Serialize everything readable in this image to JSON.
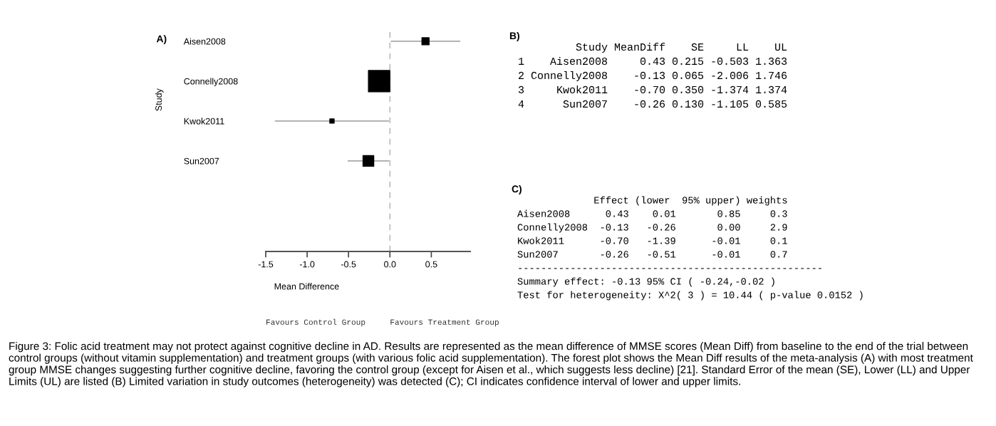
{
  "chart_data": [
    {
      "type": "bubble",
      "orientation": "horizontal",
      "title": "A)",
      "xlabel": "Mean Difference",
      "ylabel": "Study",
      "categories": [
        "Aisen2008",
        "Connelly2008",
        "Kwok2011",
        "Sun2007"
      ],
      "values": [
        0.43,
        -0.13,
        -0.7,
        -0.26
      ],
      "sizes": [
        0.11,
        1,
        0.04,
        0.25
      ],
      "errors": [
        [
          0.01,
          0.85
        ],
        [
          -0.26,
          0.0
        ],
        [
          -1.39,
          -0.01
        ],
        [
          -0.51,
          -0.01
        ]
      ],
      "colors": [
        "#000000",
        "#000000",
        "#000000",
        "#000000"
      ],
      "marker": "square",
      "xlim": [
        -1.5,
        0.97
      ],
      "xticks": [
        {
          "value": -1.5,
          "label": "-1.5"
        },
        {
          "value": -1.0,
          "label": "-1.0"
        },
        {
          "value": -0.5,
          "label": "-0.5"
        },
        {
          "value": 0.0,
          "label": "0.0"
        },
        {
          "value": 0.5,
          "label": "0.5"
        }
      ],
      "ref_lines": [
        {
          "axis": "x",
          "value": 0,
          "color": "#bbbbbb",
          "line_style": "dashed"
        }
      ],
      "grid": false,
      "legend": false,
      "annotations": [
        "Favours Control Group",
        "Favours Treatment Group"
      ]
    },
    {
      "type": "other",
      "title": "B)",
      "annotations": [
        "         Study MeanDiff    SE     LL    UL",
        "1    Aisen2008     0.43 0.215 -0.503 1.363",
        "2 Connelly2008    -0.13 0.065 -2.006 1.746",
        "3     Kwok2011    -0.70 0.350 -1.374 1.374",
        "4      Sun2007    -0.26 0.130 -1.105 0.585"
      ]
    },
    {
      "type": "other",
      "title": "C)",
      "annotations": [
        "             Effect (lower  95% upper) weights",
        "Aisen2008      0.43    0.01       0.85     0.3",
        "Connelly2008  -0.13   -0.26       0.00     2.9",
        "Kwok2011      -0.70   -1.39      -0.01     0.1",
        "Sun2007       -0.26   -0.51      -0.01     0.7",
        "----------------------------------------------------",
        "Summary effect: -0.13 95% CI ( -0.24,-0.02 )",
        "Test for heterogeneity: X^2( 3 ) = 10.44 ( p-value 0.0152 )"
      ]
    },
    {
      "type": "other",
      "annotations": [
        "Figure 3: Folic acid treatment may not protect against cognitive decline in AD. Results are represented as the mean difference of MMSE scores (Mean Diff) from baseline to the end of the trial between control groups (without vitamin supplementation) and treatment groups (with various folic acid supplementation). The forest plot shows the Mean Diff results of the meta-analysis (A) with most treatment group MMSE changes suggesting further cognitive decline, favoring the control group (except for Aisen et al., which suggests less decline) [21]. Standard Error of the mean (SE), Lower (LL) and Upper Limits (UL) are listed (B) Limited variation in study outcomes (heterogeneity) was detected (C); CI indicates confidence interval of lower and upper limits."
      ]
    }
  ]
}
